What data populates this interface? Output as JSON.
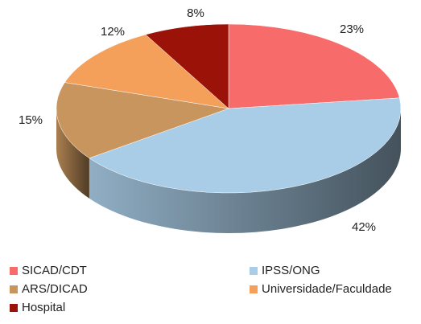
{
  "chart_data": {
    "type": "pie",
    "categories": [
      "SICAD/CDT",
      "IPSS/ONG",
      "ARS/DICAD",
      "Universidade/Faculdade",
      "Hospital"
    ],
    "values": [
      23,
      42,
      15,
      12,
      8
    ],
    "value_labels": [
      "23%",
      "42%",
      "15%",
      "12%",
      "8%"
    ],
    "colors": [
      "#f76b6b",
      "#a9cde6",
      "#c9955e",
      "#f5a05a",
      "#9b1208"
    ],
    "legend": "bottom"
  }
}
